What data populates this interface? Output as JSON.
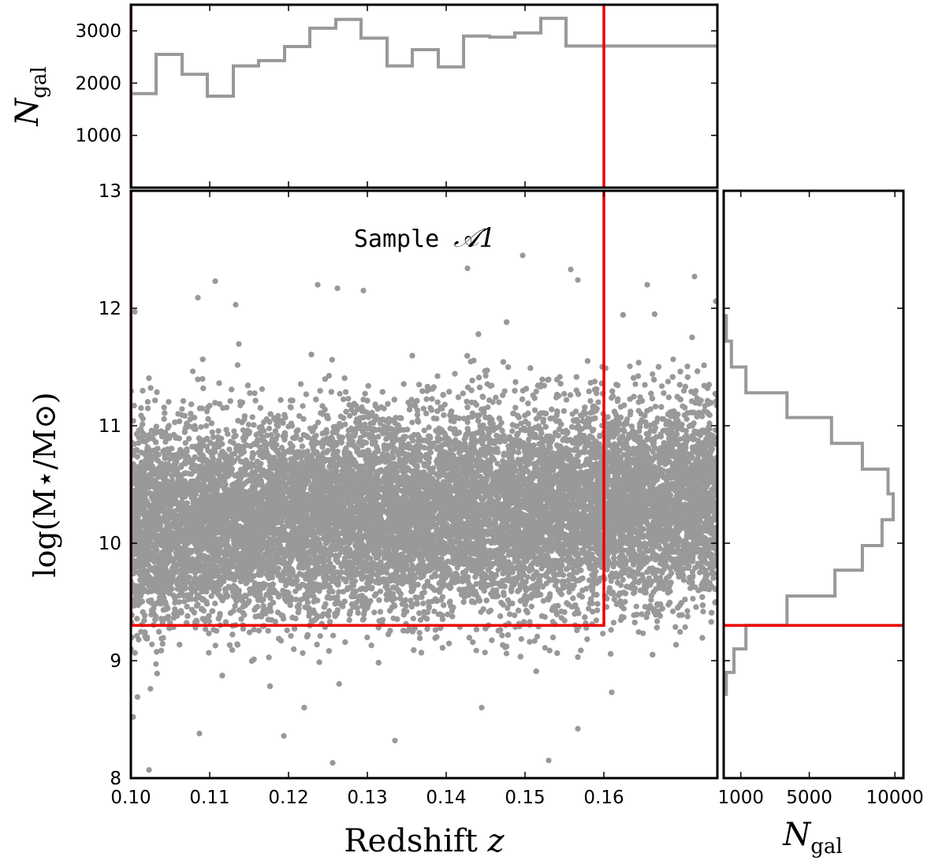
{
  "chart_data": [
    {
      "name": "top-histogram",
      "type": "histogram",
      "orientation": "vertical",
      "ylabel_symbol": "N",
      "ylabel_sub": "gal",
      "xlim": [
        0.1,
        0.1744
      ],
      "ylim": [
        0,
        3500
      ],
      "yticks": [
        1000,
        2000,
        3000
      ],
      "bin_edges": [
        0.1,
        0.1032,
        0.1065,
        0.1097,
        0.113,
        0.1162,
        0.1195,
        0.1227,
        0.126,
        0.1292,
        0.1325,
        0.1357,
        0.139,
        0.1422,
        0.1455,
        0.1487,
        0.152,
        0.1552,
        0.1585,
        0.1617,
        0.165,
        0.1682,
        0.1715,
        0.1744
      ],
      "counts": [
        1800,
        2550,
        2170,
        1750,
        2330,
        2430,
        2700,
        3050,
        3220,
        2860,
        2330,
        2640,
        2310,
        2900,
        2880,
        2960,
        3240,
        2710,
        2710,
        2710,
        2710,
        2710,
        2710
      ],
      "cut_line_x": 0.16,
      "line_color": "#999999",
      "cut_color": "#ee0000"
    },
    {
      "name": "main-scatter",
      "type": "scatter",
      "annotation_prefix": "Sample ",
      "annotation_symbol": "𝒜1",
      "xlabel_prefix": "Redshift ",
      "xlabel_symbol": "z",
      "ylabel": "log(M⋆/M⊙)",
      "xlim": [
        0.1,
        0.1744
      ],
      "ylim": [
        8,
        13
      ],
      "xticks": [
        "0.10",
        "0.11",
        "0.12",
        "0.13",
        "0.14",
        "0.15",
        "0.16"
      ],
      "yticks": [
        8,
        9,
        10,
        11,
        12,
        13
      ],
      "point_color": "#999999",
      "point_count": 26000,
      "mass_mean": 10.15,
      "mass_sd": 0.42,
      "mass_trend_per_unit_z": 3.0,
      "outliers": [
        {
          "x": 0.1005,
          "y": 11.97
        },
        {
          "x": 0.1085,
          "y": 12.09
        },
        {
          "x": 0.1107,
          "y": 12.23
        },
        {
          "x": 0.1133,
          "y": 12.03
        },
        {
          "x": 0.1237,
          "y": 12.2
        },
        {
          "x": 0.1262,
          "y": 12.17
        },
        {
          "x": 0.1295,
          "y": 12.15
        },
        {
          "x": 0.1427,
          "y": 12.34
        },
        {
          "x": 0.1497,
          "y": 12.45
        },
        {
          "x": 0.1558,
          "y": 12.33
        },
        {
          "x": 0.1567,
          "y": 12.24
        },
        {
          "x": 0.1655,
          "y": 12.2
        },
        {
          "x": 0.1715,
          "y": 12.27
        },
        {
          "x": 0.1742,
          "y": 12.06
        },
        {
          "x": 0.1023,
          "y": 8.07
        },
        {
          "x": 0.1256,
          "y": 8.13
        },
        {
          "x": 0.153,
          "y": 8.15
        },
        {
          "x": 0.1335,
          "y": 8.32
        },
        {
          "x": 0.1194,
          "y": 8.36
        },
        {
          "x": 0.1567,
          "y": 8.42
        },
        {
          "x": 0.1087,
          "y": 8.38
        },
        {
          "x": 0.1003,
          "y": 8.52
        },
        {
          "x": 0.1445,
          "y": 8.6
        },
        {
          "x": 0.161,
          "y": 8.73
        }
      ],
      "cut_polyline": [
        [
          0.1,
          9.3
        ],
        [
          0.16,
          9.3
        ],
        [
          0.16,
          13
        ]
      ],
      "cut_color": "#ee0000"
    },
    {
      "name": "right-histogram",
      "type": "histogram",
      "orientation": "horizontal",
      "xlabel_symbol": "N",
      "xlabel_sub": "gal",
      "xlim": [
        0,
        10500
      ],
      "ylim": [
        8,
        13
      ],
      "xticks": [
        1000,
        5000,
        10000
      ],
      "bin_edges": [
        8.7,
        8.9,
        9.1,
        9.3,
        9.55,
        9.77,
        9.98,
        10.2,
        10.42,
        10.63,
        10.85,
        11.07,
        11.28,
        11.5,
        11.72,
        11.95
      ],
      "counts": [
        150,
        600,
        1300,
        3700,
        6500,
        8100,
        9250,
        9900,
        9600,
        8100,
        6300,
        3700,
        1300,
        450,
        150
      ],
      "cut_line_y": 9.3,
      "line_color": "#999999",
      "cut_color": "#ee0000"
    }
  ]
}
